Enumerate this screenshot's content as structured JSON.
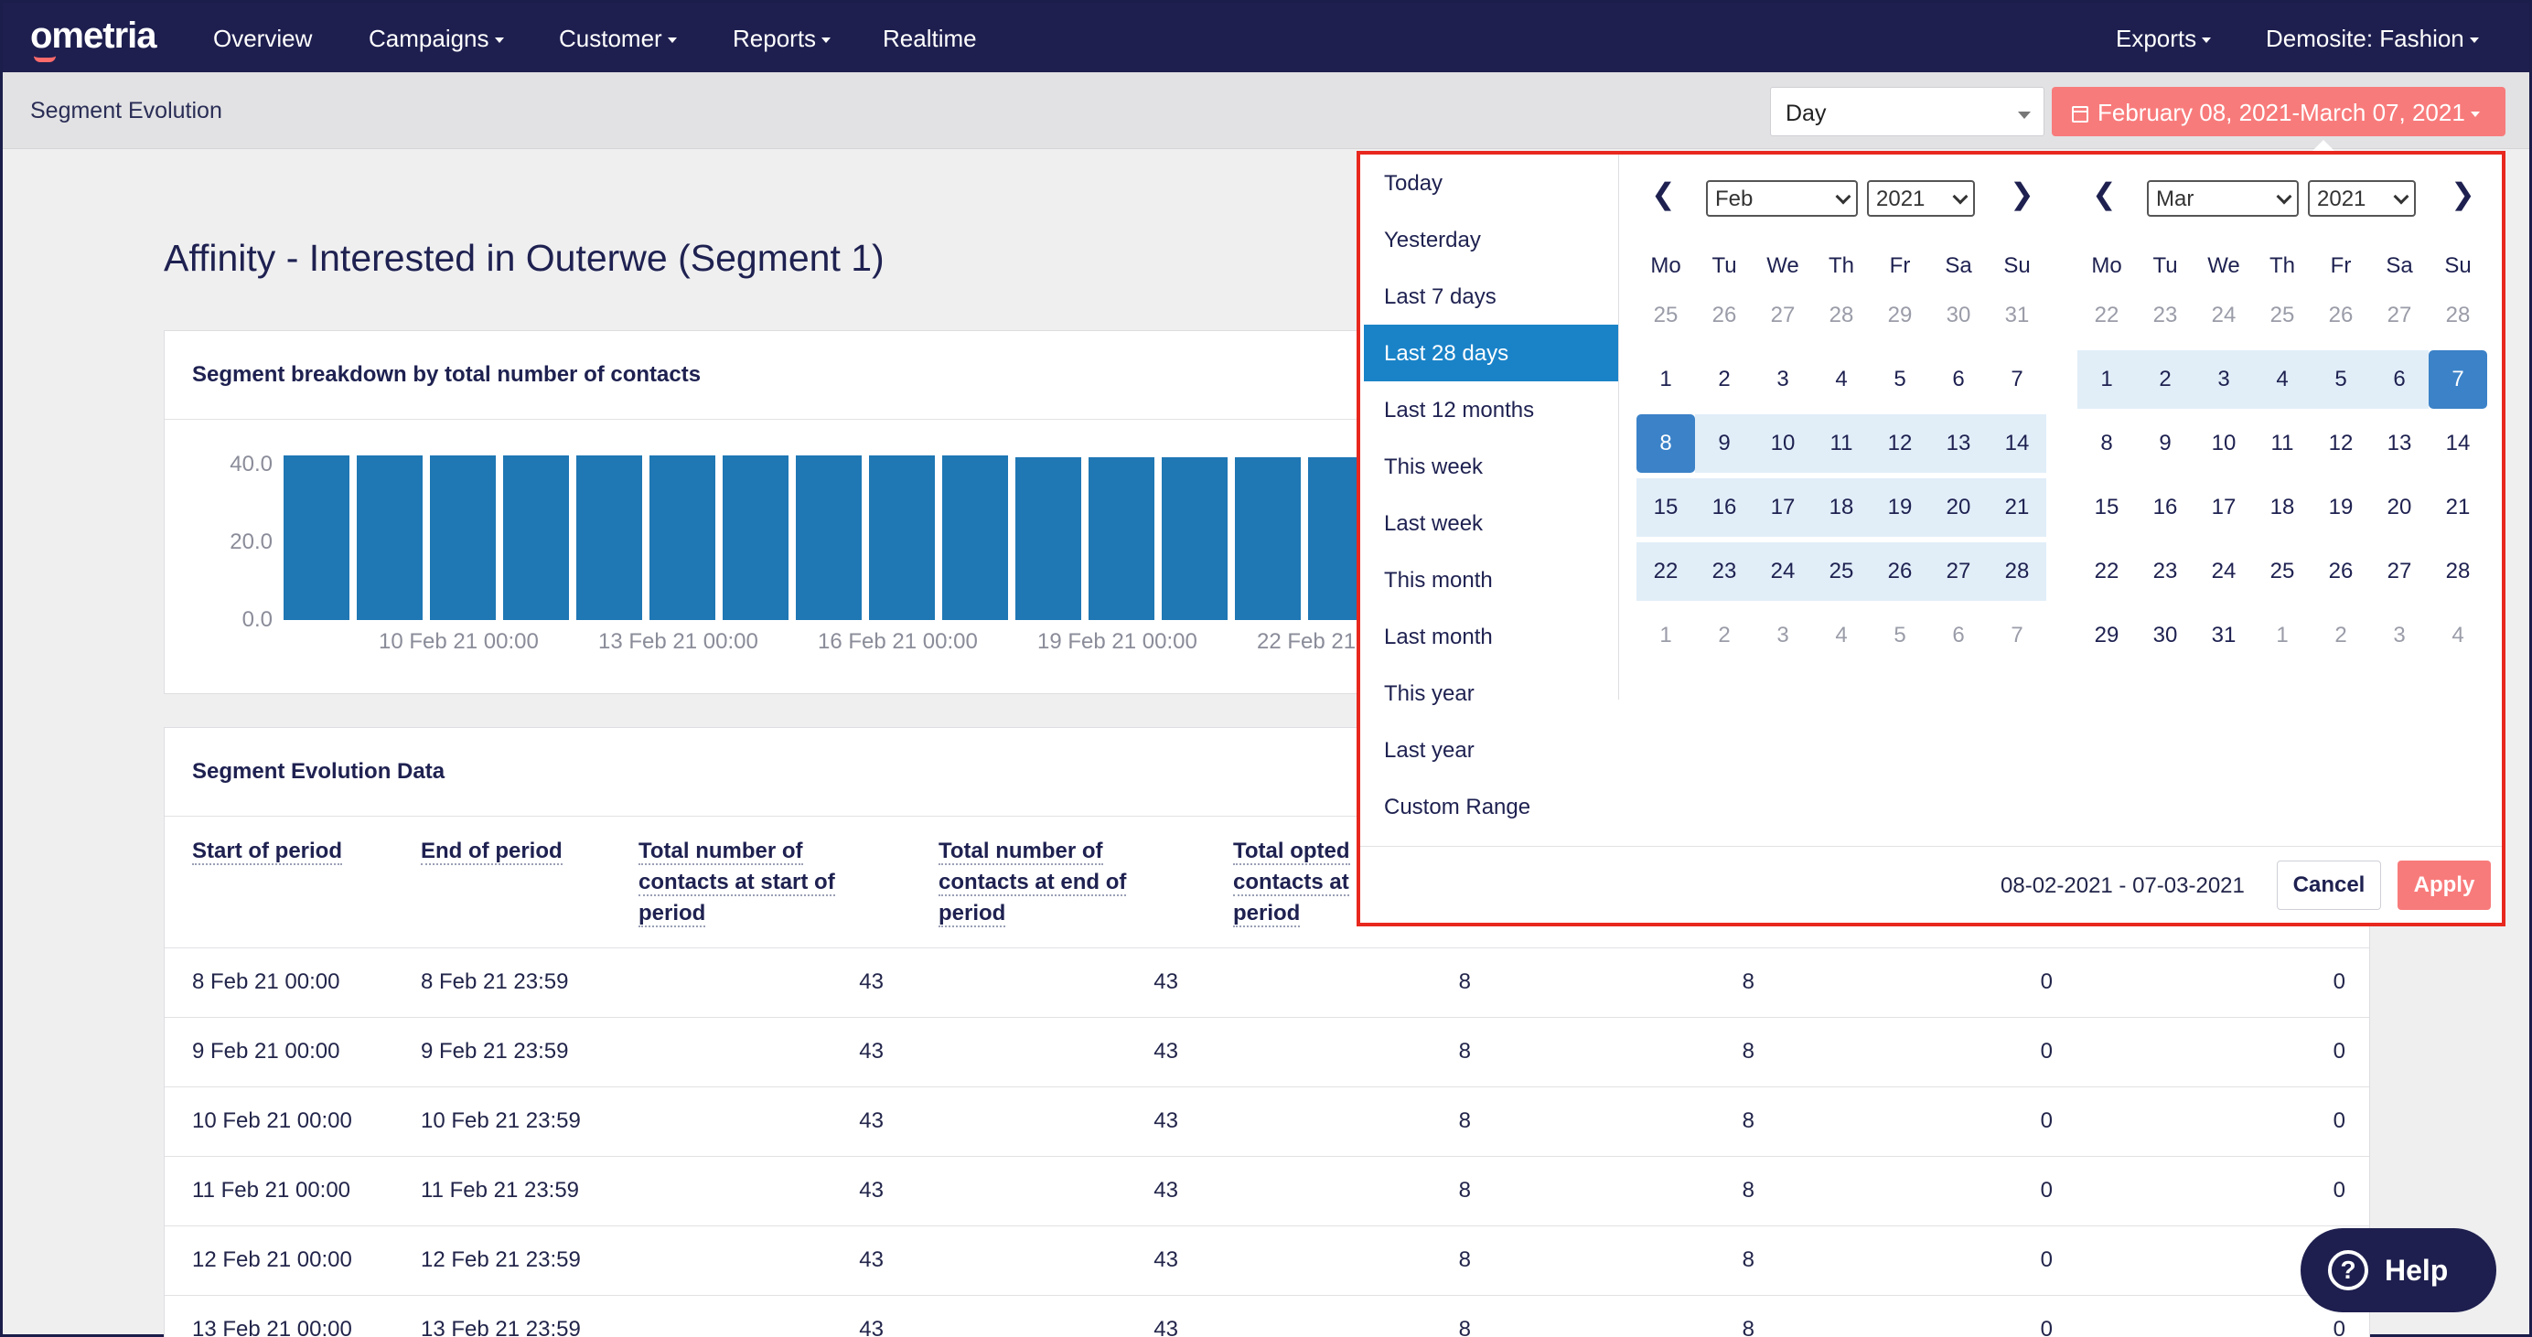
{
  "nav": {
    "logo": "ometria",
    "items": [
      "Overview",
      "Campaigns",
      "Customer",
      "Reports",
      "Realtime"
    ],
    "right": [
      "Exports",
      "Demosite: Fashion"
    ]
  },
  "subheader": {
    "title": "Segment Evolution",
    "granularity": "Day",
    "date_range": "February 08, 2021-March 07, 2021"
  },
  "page_title": "Affinity - Interested in Outerwe (Segment 1)",
  "breakdown": {
    "title": "Segment breakdown by total number of contacts",
    "chart_data": {
      "type": "bar",
      "title": "",
      "xlabel": "",
      "ylabel": "",
      "ylim": [
        0,
        40
      ],
      "yticks": [
        "40.0",
        "20.0",
        "0.0"
      ],
      "xticks": [
        "10 Feb 21 00:00",
        "13 Feb 21 00:00",
        "16 Feb 21 00:00",
        "19 Feb 21 00:00",
        "22 Feb 21"
      ],
      "values": [
        43,
        43,
        43,
        43,
        43,
        43,
        43,
        43,
        43,
        43,
        42,
        42,
        42,
        42,
        42
      ]
    }
  },
  "table": {
    "title": "Segment Evolution Data",
    "headers": [
      "Start of period",
      "End of period",
      "Total number of contacts at start of period",
      "Total number of contacts at end of period",
      "Total opted contacts at period"
    ],
    "rows": [
      [
        "8 Feb 21 00:00",
        "8 Feb 21 23:59",
        "43",
        "43",
        "8",
        "8",
        "0",
        "0"
      ],
      [
        "9 Feb 21 00:00",
        "9 Feb 21 23:59",
        "43",
        "43",
        "8",
        "8",
        "0",
        "0"
      ],
      [
        "10 Feb 21 00:00",
        "10 Feb 21 23:59",
        "43",
        "43",
        "8",
        "8",
        "0",
        "0"
      ],
      [
        "11 Feb 21 00:00",
        "11 Feb 21 23:59",
        "43",
        "43",
        "8",
        "8",
        "0",
        "0"
      ],
      [
        "12 Feb 21 00:00",
        "12 Feb 21 23:59",
        "43",
        "43",
        "8",
        "8",
        "0",
        "0"
      ],
      [
        "13 Feb 21 00:00",
        "13 Feb 21 23:59",
        "43",
        "43",
        "8",
        "8",
        "0",
        "0"
      ]
    ]
  },
  "picker": {
    "ranges": [
      "Today",
      "Yesterday",
      "Last 7 days",
      "Last 28 days",
      "Last 12 months",
      "This week",
      "Last week",
      "This month",
      "Last month",
      "This year",
      "Last year",
      "Custom Range"
    ],
    "active_range": "Last 28 days",
    "weekdays": [
      "Mo",
      "Tu",
      "We",
      "Th",
      "Fr",
      "Sa",
      "Su"
    ],
    "left": {
      "month": "Feb",
      "year": "2021",
      "weeks": [
        [
          "25",
          "26",
          "27",
          "28",
          "29",
          "30",
          "31"
        ],
        [
          "1",
          "2",
          "3",
          "4",
          "5",
          "6",
          "7"
        ],
        [
          "8",
          "9",
          "10",
          "11",
          "12",
          "13",
          "14"
        ],
        [
          "15",
          "16",
          "17",
          "18",
          "19",
          "20",
          "21"
        ],
        [
          "22",
          "23",
          "24",
          "25",
          "26",
          "27",
          "28"
        ],
        [
          "1",
          "2",
          "3",
          "4",
          "5",
          "6",
          "7"
        ]
      ]
    },
    "right": {
      "month": "Mar",
      "year": "2021",
      "weeks": [
        [
          "22",
          "23",
          "24",
          "25",
          "26",
          "27",
          "28"
        ],
        [
          "1",
          "2",
          "3",
          "4",
          "5",
          "6",
          "7"
        ],
        [
          "8",
          "9",
          "10",
          "11",
          "12",
          "13",
          "14"
        ],
        [
          "15",
          "16",
          "17",
          "18",
          "19",
          "20",
          "21"
        ],
        [
          "22",
          "23",
          "24",
          "25",
          "26",
          "27",
          "28"
        ],
        [
          "29",
          "30",
          "31",
          "1",
          "2",
          "3",
          "4"
        ]
      ]
    },
    "selected_text": "08-02-2021 - 07-03-2021",
    "cancel": "Cancel",
    "apply": "Apply"
  },
  "help": "Help",
  "colors": {
    "nav": "#1e1f4f",
    "accent": "#f87b7b",
    "bar": "#1f77b4",
    "active": "#1a83c8",
    "highlight": "#e8281e"
  }
}
